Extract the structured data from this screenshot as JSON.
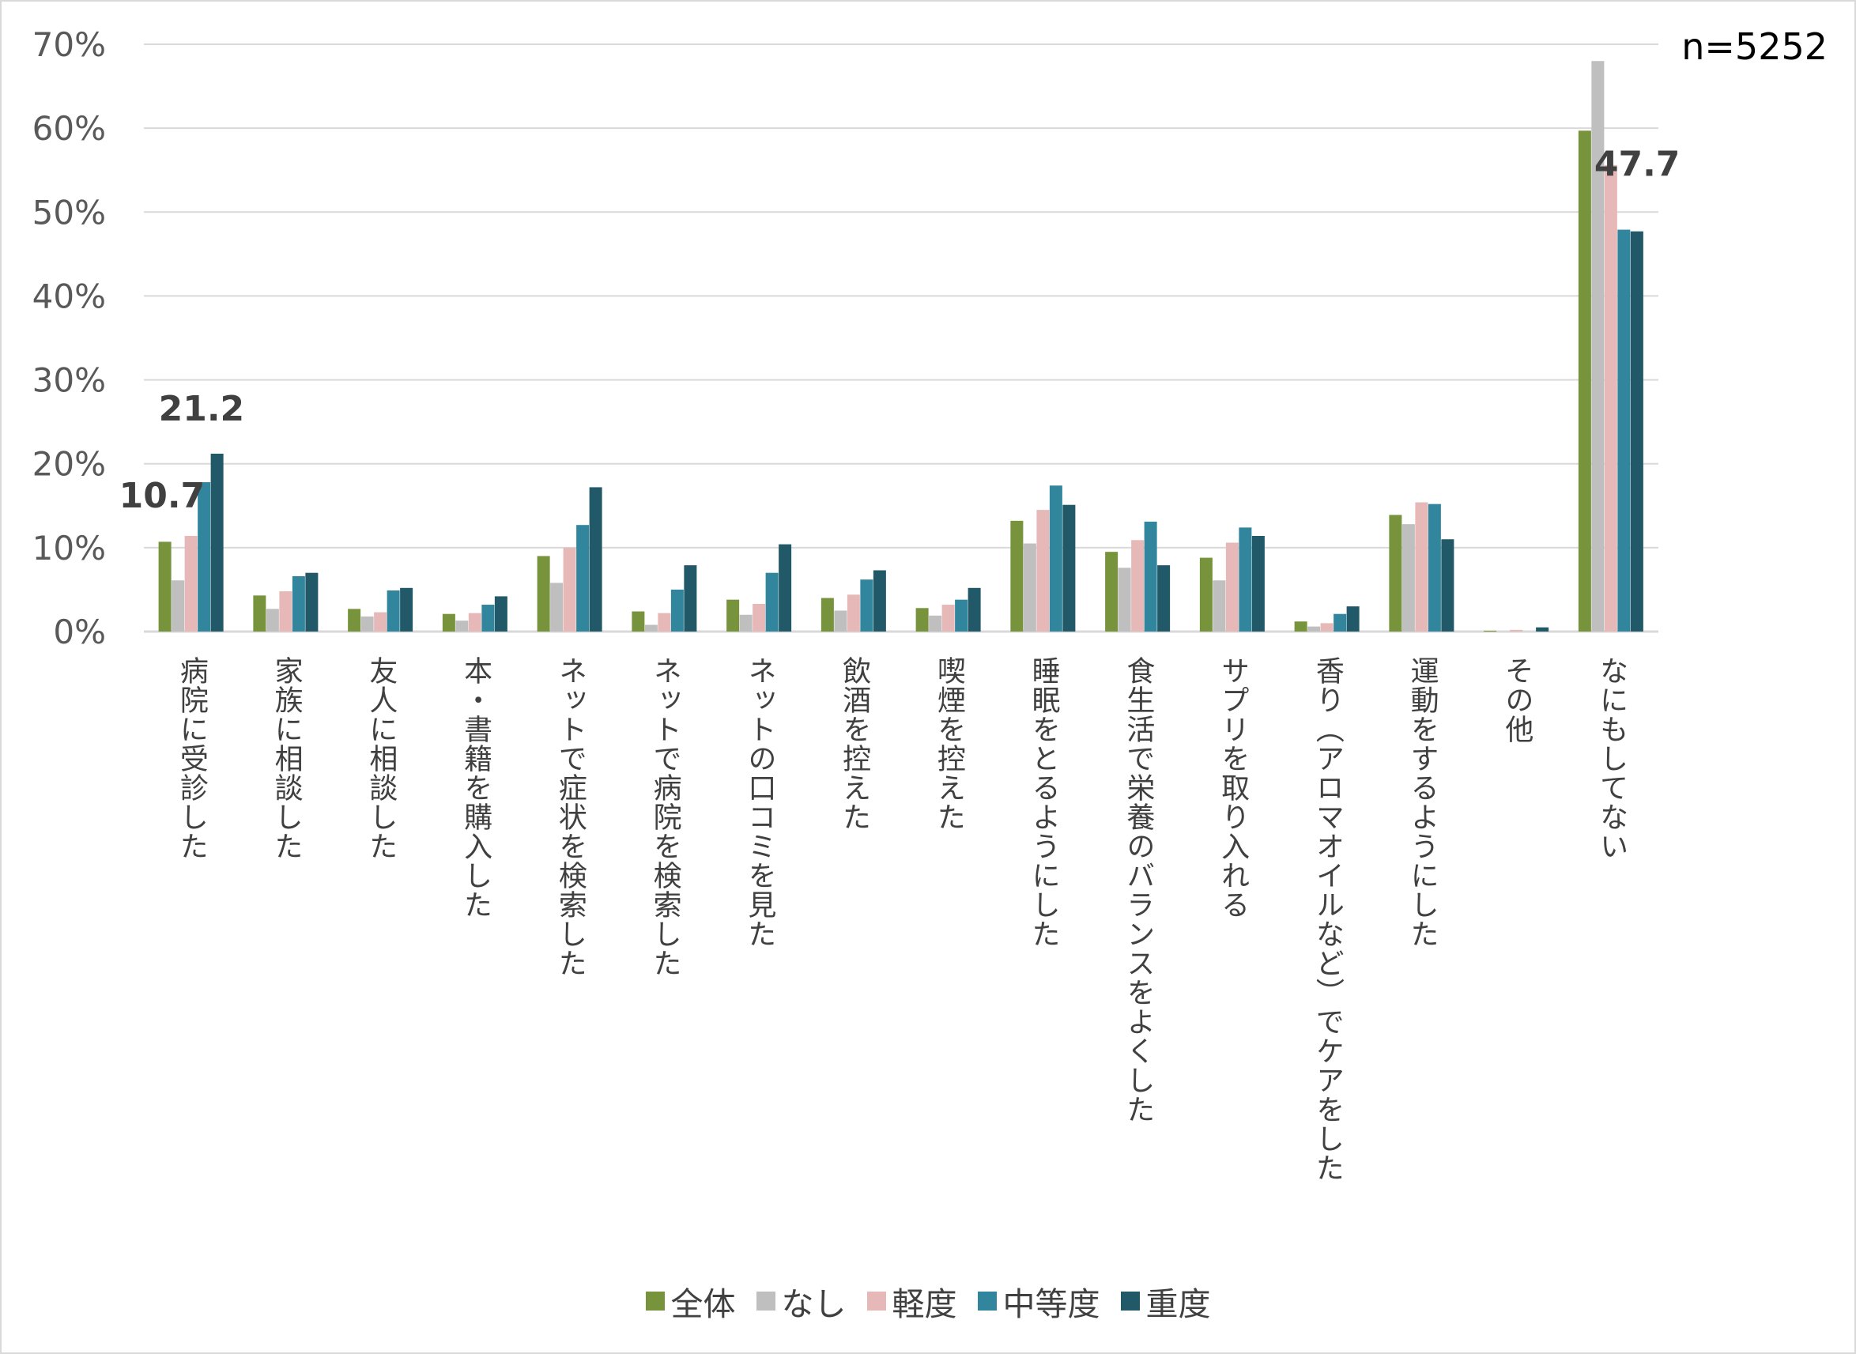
{
  "chart_data": {
    "type": "bar",
    "title": "",
    "annotation": "n=5252",
    "xlabel": "",
    "ylabel": "",
    "ylim": [
      0,
      70
    ],
    "yticks": [
      "0%",
      "10%",
      "20%",
      "30%",
      "40%",
      "50%",
      "60%",
      "70%"
    ],
    "grid": true,
    "legend_position": "bottom",
    "categories": [
      "病院に受診した",
      "家族に相談した",
      "友人に相談した",
      "本・書籍を購入した",
      "ネットで症状を検索した",
      "ネットで病院を検索した",
      "ネットの口コミを見た",
      "飲酒を控えた",
      "喫煙を控えた",
      "睡眠をとるようにした",
      "食生活で栄養のバランスをよくした",
      "サプリを取り入れる",
      "香り（アロマオイルなど）でケアをした",
      "運動をするようにした",
      "その他",
      "なにもしてない"
    ],
    "series": [
      {
        "name": "全体",
        "color": "#77933C",
        "values": [
          10.7,
          4.3,
          2.7,
          2.1,
          9.0,
          2.4,
          3.8,
          4.0,
          2.8,
          13.2,
          9.5,
          8.8,
          1.2,
          13.9,
          0.1,
          59.7
        ]
      },
      {
        "name": "なし",
        "color": "#BFBFBF",
        "values": [
          6.1,
          2.7,
          1.8,
          1.3,
          5.8,
          0.8,
          2.0,
          2.5,
          1.9,
          10.5,
          7.6,
          6.1,
          0.6,
          12.8,
          0.0,
          68.0
        ]
      },
      {
        "name": "軽度",
        "color": "#E6B9B8",
        "values": [
          11.4,
          4.8,
          2.3,
          2.2,
          10.0,
          2.2,
          3.3,
          4.4,
          3.2,
          14.5,
          10.9,
          10.6,
          1.0,
          15.4,
          0.2,
          55.6
        ]
      },
      {
        "name": "中等度",
        "color": "#31859C",
        "values": [
          17.8,
          6.6,
          4.9,
          3.2,
          12.7,
          5.0,
          7.0,
          6.2,
          3.8,
          17.4,
          13.1,
          12.4,
          2.1,
          15.2,
          0.0,
          47.9
        ]
      },
      {
        "name": "重度",
        "color": "#215968",
        "values": [
          21.2,
          7.0,
          5.2,
          4.2,
          17.2,
          7.9,
          10.4,
          7.3,
          5.2,
          15.1,
          7.9,
          11.4,
          3.0,
          11.0,
          0.5,
          47.7
        ]
      }
    ],
    "data_labels": [
      {
        "text": "10.7",
        "category_index": 0,
        "series_index": 0
      },
      {
        "text": "21.2",
        "category_index": 0,
        "series_index": 4
      },
      {
        "text": "47.7",
        "category_index": 15,
        "series_index": 4
      }
    ]
  }
}
